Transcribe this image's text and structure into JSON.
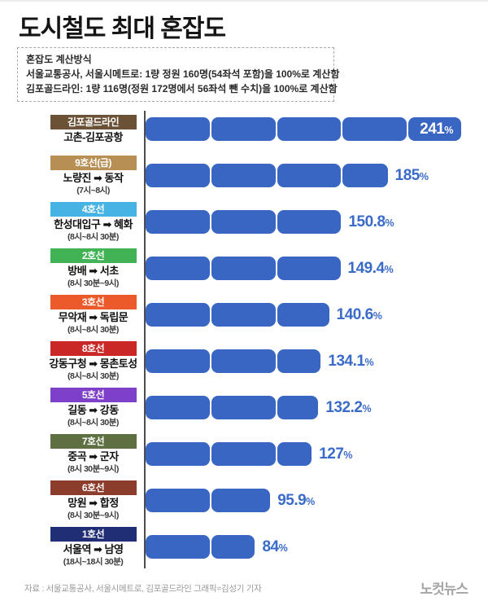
{
  "title": "도시철도 최대 혼잡도",
  "info_box": {
    "heading": "혼잡도 계산방식",
    "lines": [
      "서울교통공사, 서울시메트로: 1량 정원 160명(54좌석 포함)을 100%로 계산함",
      "김포골드라인: 1량 116명(정원 172명에서 56좌석 뺀 수치)을 100%로 계산함"
    ]
  },
  "chart_data": {
    "type": "bar",
    "orientation": "horizontal",
    "unit": "%",
    "value_axis": {
      "min": 0,
      "max": 241,
      "segment_interval": 50
    },
    "bar_color": "#3a66c3",
    "value_text_color": "#3a6bc9",
    "axis_line_color": "#4d4d4d",
    "rows": [
      {
        "line": "김포골드라인",
        "line_color": "#6b5236",
        "route": "고촌-김포공항",
        "time": "",
        "value": 241,
        "value_label": "241",
        "value_inside": true
      },
      {
        "line": "9호선(급)",
        "line_color": "#b78f55",
        "route": "노량진 ➡ 동작",
        "time": "(7시~8시)",
        "value": 185,
        "value_label": "185",
        "value_inside": false
      },
      {
        "line": "4호선",
        "line_color": "#47b2e4",
        "route": "한성대입구 ➡ 혜화",
        "time": "(8시~8시 30분)",
        "value": 150.8,
        "value_label": "150.8",
        "value_inside": false
      },
      {
        "line": "2호선",
        "line_color": "#41b354",
        "route": "방배 ➡ 서초",
        "time": "(8시 30분~9시)",
        "value": 149.4,
        "value_label": "149.4",
        "value_inside": false
      },
      {
        "line": "3호선",
        "line_color": "#eb5a2a",
        "route": "무악재 ➡ 독립문",
        "time": "(8시~8시 30분)",
        "value": 140.6,
        "value_label": "140.6",
        "value_inside": false
      },
      {
        "line": "8호선",
        "line_color": "#ca2727",
        "route": "강동구청 ➡ 몽촌토성",
        "time": "(8시~8시 30분)",
        "value": 134.1,
        "value_label": "134.1",
        "value_inside": false
      },
      {
        "line": "5호선",
        "line_color": "#7e3fc9",
        "route": "길동 ➡ 강동",
        "time": "(8시~8시 30분)",
        "value": 132.2,
        "value_label": "132.2",
        "value_inside": false
      },
      {
        "line": "7호선",
        "line_color": "#5e6f41",
        "route": "중곡 ➡ 군자",
        "time": "(8시 30분~9시)",
        "value": 127,
        "value_label": "127",
        "value_inside": false
      },
      {
        "line": "6호선",
        "line_color": "#8b3c2b",
        "route": "망원 ➡ 합정",
        "time": "(8시 30분~9시)",
        "value": 95.9,
        "value_label": "95.9",
        "value_inside": false
      },
      {
        "line": "1호선",
        "line_color": "#202e75",
        "route": "서울역 ➡ 남영",
        "time": "(18시~18시 30분)",
        "value": 84,
        "value_label": "84",
        "value_inside": false
      }
    ]
  },
  "footer": {
    "source": "자료 : 서울교통공사, 서울시메트로, 김포골드라인    그래픽=김성기 기자",
    "logo": "노컷뉴스"
  }
}
